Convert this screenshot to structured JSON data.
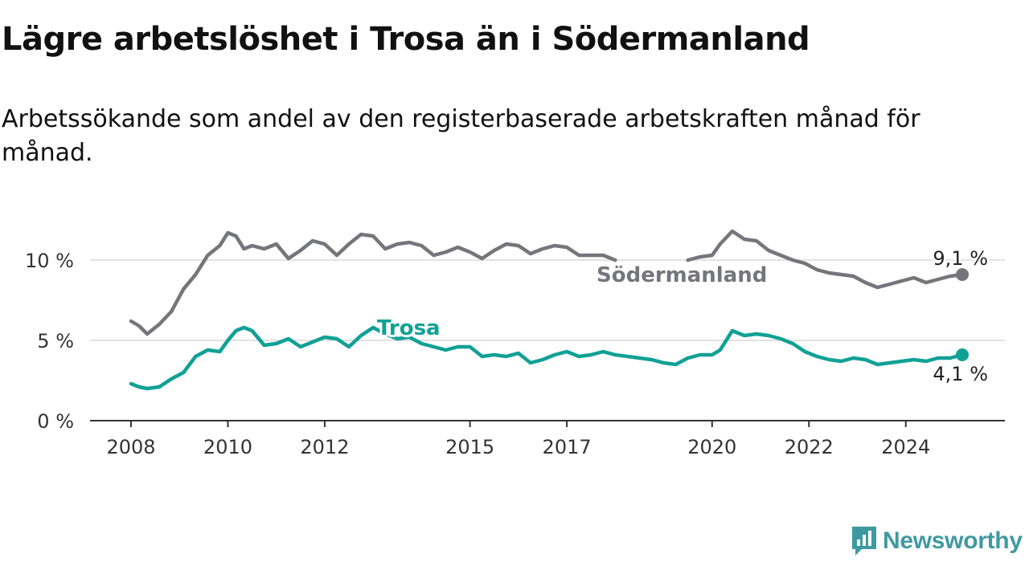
{
  "title": "Lägre arbetslöshet i Trosa än i Södermanland",
  "subtitle": "Arbetssökande som andel av den registerbaserade arbetskraften månad för månad.",
  "brand": {
    "name": "Newsworthy",
    "color": "#3f9aa0"
  },
  "chart_data": {
    "type": "line",
    "x_ticks": [
      "2008",
      "2010",
      "2012",
      "2015",
      "2017",
      "2020",
      "2022",
      "2024"
    ],
    "y_ticks": [
      "0 %",
      "5 %",
      "10 %"
    ],
    "ylim": [
      0,
      13
    ],
    "grid": "horizontal",
    "series": [
      {
        "name": "Södermanland",
        "color": "#75757c",
        "end_label": "9,1 %",
        "points": [
          [
            "2008-01",
            6.2
          ],
          [
            "2008-03",
            5.9
          ],
          [
            "2008-05",
            5.4
          ],
          [
            "2008-08",
            6.0
          ],
          [
            "2008-11",
            6.8
          ],
          [
            "2009-02",
            8.2
          ],
          [
            "2009-05",
            9.1
          ],
          [
            "2009-08",
            10.3
          ],
          [
            "2009-11",
            10.9
          ],
          [
            "2010-01",
            11.7
          ],
          [
            "2010-03",
            11.5
          ],
          [
            "2010-05",
            10.7
          ],
          [
            "2010-07",
            10.9
          ],
          [
            "2010-10",
            10.7
          ],
          [
            "2011-01",
            11.0
          ],
          [
            "2011-04",
            10.1
          ],
          [
            "2011-07",
            10.6
          ],
          [
            "2011-10",
            11.2
          ],
          [
            "2012-01",
            11.0
          ],
          [
            "2012-04",
            10.3
          ],
          [
            "2012-07",
            11.0
          ],
          [
            "2012-10",
            11.6
          ],
          [
            "2013-01",
            11.5
          ],
          [
            "2013-04",
            10.7
          ],
          [
            "2013-07",
            11.0
          ],
          [
            "2013-10",
            11.1
          ],
          [
            "2014-01",
            10.9
          ],
          [
            "2014-04",
            10.3
          ],
          [
            "2014-07",
            10.5
          ],
          [
            "2014-10",
            10.8
          ],
          [
            "2015-01",
            10.5
          ],
          [
            "2015-04",
            10.1
          ],
          [
            "2015-07",
            10.6
          ],
          [
            "2015-10",
            11.0
          ],
          [
            "2016-01",
            10.9
          ],
          [
            "2016-04",
            10.4
          ],
          [
            "2016-07",
            10.7
          ],
          [
            "2016-10",
            10.9
          ],
          [
            "2017-01",
            10.8
          ],
          [
            "2017-04",
            10.3
          ],
          [
            "2017-07",
            10.3
          ],
          [
            "2017-10",
            10.3
          ],
          [
            "2018-01",
            10.0
          ],
          null,
          [
            "2019-07",
            10.0
          ],
          [
            "2019-10",
            10.2
          ],
          [
            "2020-01",
            10.3
          ],
          [
            "2020-03",
            11.0
          ],
          [
            "2020-06",
            11.8
          ],
          [
            "2020-09",
            11.3
          ],
          [
            "2020-12",
            11.2
          ],
          [
            "2021-03",
            10.6
          ],
          [
            "2021-06",
            10.3
          ],
          [
            "2021-09",
            10.0
          ],
          [
            "2021-12",
            9.8
          ],
          [
            "2022-03",
            9.4
          ],
          [
            "2022-06",
            9.2
          ],
          [
            "2022-09",
            9.1
          ],
          [
            "2022-12",
            9.0
          ],
          [
            "2023-03",
            8.6
          ],
          [
            "2023-06",
            8.3
          ],
          [
            "2023-09",
            8.5
          ],
          [
            "2023-12",
            8.7
          ],
          [
            "2024-03",
            8.9
          ],
          [
            "2024-06",
            8.6
          ],
          [
            "2024-09",
            8.8
          ],
          [
            "2024-12",
            9.0
          ],
          [
            "2025-03",
            9.1
          ]
        ]
      },
      {
        "name": "Trosa",
        "color": "#10a195",
        "end_label": "4,1 %",
        "points": [
          [
            "2008-01",
            2.3
          ],
          [
            "2008-03",
            2.1
          ],
          [
            "2008-05",
            2.0
          ],
          [
            "2008-08",
            2.1
          ],
          [
            "2008-11",
            2.6
          ],
          [
            "2009-02",
            3.0
          ],
          [
            "2009-05",
            4.0
          ],
          [
            "2009-08",
            4.4
          ],
          [
            "2009-11",
            4.3
          ],
          [
            "2010-01",
            5.0
          ],
          [
            "2010-03",
            5.6
          ],
          [
            "2010-05",
            5.8
          ],
          [
            "2010-07",
            5.6
          ],
          [
            "2010-10",
            4.7
          ],
          [
            "2011-01",
            4.8
          ],
          [
            "2011-04",
            5.1
          ],
          [
            "2011-07",
            4.6
          ],
          [
            "2011-10",
            4.9
          ],
          [
            "2012-01",
            5.2
          ],
          [
            "2012-04",
            5.1
          ],
          [
            "2012-07",
            4.6
          ],
          [
            "2012-10",
            5.3
          ],
          [
            "2013-01",
            5.8
          ],
          [
            "2013-04",
            5.4
          ],
          [
            "2013-07",
            5.1
          ],
          [
            "2013-10",
            5.2
          ],
          [
            "2014-01",
            4.8
          ],
          [
            "2014-04",
            4.6
          ],
          [
            "2014-07",
            4.4
          ],
          [
            "2014-10",
            4.6
          ],
          [
            "2015-01",
            4.6
          ],
          [
            "2015-04",
            4.0
          ],
          [
            "2015-07",
            4.1
          ],
          [
            "2015-10",
            4.0
          ],
          [
            "2016-01",
            4.2
          ],
          [
            "2016-04",
            3.6
          ],
          [
            "2016-07",
            3.8
          ],
          [
            "2016-10",
            4.1
          ],
          [
            "2017-01",
            4.3
          ],
          [
            "2017-04",
            4.0
          ],
          [
            "2017-07",
            4.1
          ],
          [
            "2017-10",
            4.3
          ],
          [
            "2018-01",
            4.1
          ],
          [
            "2018-04",
            4.0
          ],
          [
            "2018-07",
            3.9
          ],
          [
            "2018-10",
            3.8
          ],
          [
            "2019-01",
            3.6
          ],
          [
            "2019-04",
            3.5
          ],
          [
            "2019-07",
            3.9
          ],
          [
            "2019-10",
            4.1
          ],
          [
            "2020-01",
            4.1
          ],
          [
            "2020-03",
            4.4
          ],
          [
            "2020-06",
            5.6
          ],
          [
            "2020-09",
            5.3
          ],
          [
            "2020-12",
            5.4
          ],
          [
            "2021-03",
            5.3
          ],
          [
            "2021-06",
            5.1
          ],
          [
            "2021-09",
            4.8
          ],
          [
            "2021-12",
            4.3
          ],
          [
            "2022-03",
            4.0
          ],
          [
            "2022-06",
            3.8
          ],
          [
            "2022-09",
            3.7
          ],
          [
            "2022-12",
            3.9
          ],
          [
            "2023-03",
            3.8
          ],
          [
            "2023-06",
            3.5
          ],
          [
            "2023-09",
            3.6
          ],
          [
            "2023-12",
            3.7
          ],
          [
            "2024-03",
            3.8
          ],
          [
            "2024-06",
            3.7
          ],
          [
            "2024-09",
            3.9
          ],
          [
            "2024-12",
            3.9
          ],
          [
            "2025-03",
            4.1
          ]
        ]
      }
    ]
  }
}
